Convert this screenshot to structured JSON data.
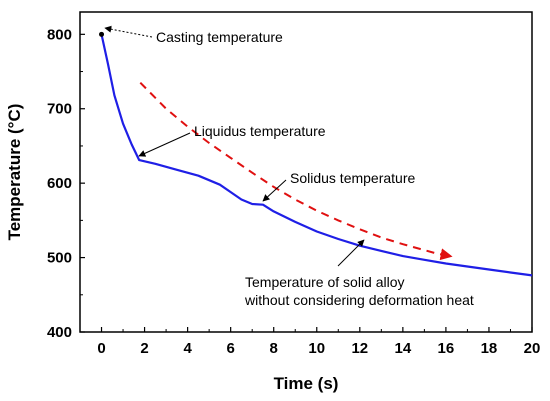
{
  "chart_data": {
    "type": "line",
    "xlabel": "Time (s)",
    "ylabel": "Temperature (°C)",
    "xlim": [
      -1,
      20
    ],
    "ylim": [
      400,
      830
    ],
    "xticks": [
      0,
      2,
      4,
      6,
      8,
      10,
      12,
      14,
      16,
      18,
      20
    ],
    "yticks": [
      400,
      500,
      600,
      700,
      800
    ],
    "grid": false,
    "series": [
      {
        "style": "solid",
        "color": "#1f1fe6",
        "x": [
          0,
          0.3,
          0.6,
          1.0,
          1.4,
          1.75,
          2.5,
          3.5,
          4.5,
          5.5,
          6.0,
          6.5,
          7.0,
          7.5,
          8.0,
          9.0,
          10,
          11,
          12,
          13,
          14,
          15,
          16,
          17,
          18,
          19,
          20
        ],
        "y": [
          800,
          760,
          718,
          680,
          652,
          631,
          626,
          618,
          610,
          598,
          588,
          578,
          572,
          571,
          562,
          548,
          535,
          525,
          516,
          509,
          502,
          497,
          492,
          488,
          484,
          480,
          476
        ]
      },
      {
        "style": "dashed-arrow",
        "color": "#e01010",
        "x": [
          1.8,
          3,
          4,
          5,
          6,
          7,
          8,
          9,
          10,
          11,
          12,
          13,
          14,
          15,
          15.5,
          16.2
        ],
        "y": [
          735,
          700,
          676,
          654,
          634,
          614,
          595,
          578,
          563,
          550,
          538,
          527,
          518,
          510,
          506,
          502
        ]
      }
    ],
    "annotations": [
      {
        "text": "Casting temperature",
        "x": 0,
        "y": 800
      },
      {
        "text": "Liquidus temperature",
        "x": 1.75,
        "y": 631
      },
      {
        "text": "Solidus temperature",
        "x": 7.4,
        "y": 570
      },
      {
        "text": "Temperature of solid alloy",
        "x": 12.2,
        "y": 516
      },
      {
        "text": "without considering deformation heat",
        "x": 12.2,
        "y": 516
      }
    ]
  }
}
